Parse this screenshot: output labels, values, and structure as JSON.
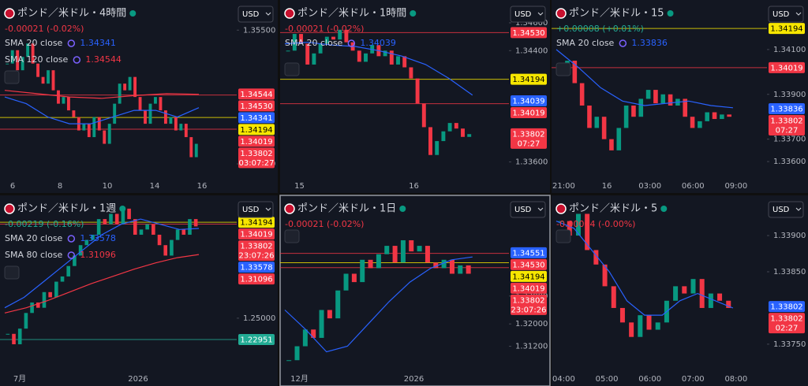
{
  "panels": [
    {
      "title": "ポンド／米ドル・4時間",
      "change": "-0.00021 (-0.02%)",
      "change_color": "#f23645",
      "currency": "USD",
      "indicators": [
        {
          "name": "SMA 20 close",
          "value": "1.34341",
          "color": "#2962ff"
        },
        {
          "name": "SMA 120 close",
          "value": "1.34544",
          "color": "#f23645"
        }
      ],
      "ylim": [
        1.333,
        1.3588
      ],
      "yticks": [
        {
          "value": 1.355,
          "label": "1.35500"
        },
        {
          "value": 1.335,
          "label": "1.33500"
        }
      ],
      "xticks": [
        "6",
        "8",
        "10",
        "14",
        "16"
      ],
      "price_labels": [
        {
          "value": 1.34544,
          "label": "1.34544",
          "color": "#f23645"
        },
        {
          "value": 1.3453,
          "label": "1.34530",
          "color": "#f23645",
          "line": true
        },
        {
          "value": 1.34341,
          "label": "1.34341",
          "color": "#2962ff"
        },
        {
          "value": 1.34194,
          "label": "1.34194",
          "color": "#f7e600",
          "line": true
        },
        {
          "value": 1.34019,
          "label": "1.34019",
          "color": "#f23645",
          "line": true
        },
        {
          "value": 1.33802,
          "label": "1.33802",
          "color": "#f23645",
          "timer": "03:07:27"
        }
      ],
      "closes": [
        1.35,
        1.352,
        1.349,
        1.351,
        1.353,
        1.35,
        1.348,
        1.347,
        1.349,
        1.346,
        1.344,
        1.345,
        1.343,
        1.342,
        1.34,
        1.341,
        1.339,
        1.342,
        1.34,
        1.338,
        1.341,
        1.344,
        1.347,
        1.346,
        1.348,
        1.345,
        1.343,
        1.341,
        1.344,
        1.345,
        1.343,
        1.341,
        1.342,
        1.34,
        1.341,
        1.339,
        1.336,
        1.338
      ],
      "sma": [
        {
          "color": "#2962ff",
          "values": [
            1.345,
            1.344,
            1.342,
            1.341,
            1.341,
            1.342,
            1.343,
            1.343,
            1.342,
            1.3434
          ]
        },
        {
          "color": "#f23645",
          "values": [
            1.346,
            1.3455,
            1.345,
            1.3448,
            1.3452,
            1.3455,
            1.3454
          ]
        }
      ]
    },
    {
      "title": "ポンド／米ドル・1時間",
      "change": "-0.00021 (-0.02%)",
      "change_color": "#f23645",
      "currency": "USD",
      "indicators": [
        {
          "name": "SMA 20 close",
          "value": "1.34039",
          "color": "#2962ff"
        }
      ],
      "ylim": [
        1.3349,
        1.3473
      ],
      "yticks": [
        {
          "value": 1.346,
          "label": "1.34600"
        },
        {
          "value": 1.344,
          "label": "1.34400"
        },
        {
          "value": 1.336,
          "label": "1.33600"
        }
      ],
      "xticks": [
        "15",
        "16"
      ],
      "price_labels": [
        {
          "value": 1.3453,
          "label": "1.34530",
          "color": "#f23645",
          "line": true
        },
        {
          "value": 1.34194,
          "label": "1.34194",
          "color": "#f7e600",
          "line": true
        },
        {
          "value": 1.34039,
          "label": "1.34039",
          "color": "#2962ff"
        },
        {
          "value": 1.34019,
          "label": "1.34019",
          "color": "#f23645",
          "line": true
        },
        {
          "value": 1.33802,
          "label": "1.33802",
          "color": "#f23645",
          "timer": "07:27"
        }
      ],
      "closes": [
        1.344,
        1.3452,
        1.3445,
        1.343,
        1.3438,
        1.3445,
        1.345,
        1.3448,
        1.3455,
        1.3446,
        1.344,
        1.3432,
        1.3438,
        1.3444,
        1.3436,
        1.344,
        1.343,
        1.3436,
        1.3428,
        1.342,
        1.3402,
        1.3385,
        1.3365,
        1.3375,
        1.3382,
        1.3388,
        1.3384,
        1.3378,
        1.338
      ],
      "sma": [
        {
          "color": "#2962ff",
          "values": [
            1.3445,
            1.3446,
            1.3444,
            1.3443,
            1.344,
            1.3436,
            1.343,
            1.342,
            1.3408
          ]
        }
      ]
    },
    {
      "title": "ポンド／米ドル・15",
      "change": "+0.00008 (+0.01%)",
      "change_color": "#22ab94",
      "currency": "USD",
      "indicators": [
        {
          "name": "SMA 20 close",
          "value": "1.33836",
          "color": "#2962ff"
        }
      ],
      "ylim": [
        1.3353,
        1.343
      ],
      "yticks": [
        {
          "value": 1.341,
          "label": "1.34100"
        },
        {
          "value": 1.339,
          "label": "1.33900"
        },
        {
          "value": 1.337,
          "label": "1.33700"
        },
        {
          "value": 1.336,
          "label": "1.33600"
        }
      ],
      "xticks": [
        "21:00",
        "16",
        "03:00",
        "06:00",
        "09:00"
      ],
      "price_labels": [
        {
          "value": 1.34194,
          "label": "1.34194",
          "color": "#f7e600",
          "line": true
        },
        {
          "value": 1.34019,
          "label": "1.34019",
          "color": "#f23645",
          "line": true
        },
        {
          "value": 1.33836,
          "label": "1.33836",
          "color": "#2962ff"
        },
        {
          "value": 1.33802,
          "label": "1.33802",
          "color": "#f23645",
          "timer": "07:27"
        }
      ],
      "closes": [
        1.34,
        1.3405,
        1.3395,
        1.3385,
        1.3375,
        1.338,
        1.337,
        1.3365,
        1.3375,
        1.3385,
        1.338,
        1.3388,
        1.3392,
        1.3386,
        1.339,
        1.3385,
        1.3388,
        1.338,
        1.3375,
        1.3378,
        1.3382,
        1.3379,
        1.3381,
        1.338
      ],
      "sma": [
        {
          "color": "#2962ff",
          "values": [
            1.341,
            1.3402,
            1.3393,
            1.3387,
            1.3385,
            1.3386,
            1.3387,
            1.3385,
            1.3384
          ]
        }
      ]
    },
    {
      "title": "ポンド／米ドル・1週",
      "change": "-0.00219 (-0.16%)",
      "change_color": "#22ab94",
      "currency": "USD",
      "indicators": [
        {
          "name": "SMA 20 close",
          "value": "1.33578",
          "color": "#2962ff"
        },
        {
          "name": "SMA 80 close",
          "value": "1.31096",
          "color": "#f23645"
        }
      ],
      "ylim": [
        1.2001,
        1.3632
      ],
      "yticks": [
        {
          "value": 1.25,
          "label": "1.25000"
        }
      ],
      "xticks": [
        "7月",
        "2026"
      ],
      "price_labels": [
        {
          "value": 1.34194,
          "label": "1.34194",
          "color": "#f7e600",
          "line": true
        },
        {
          "value": 1.34019,
          "label": "1.34019",
          "color": "#f23645",
          "line": true
        },
        {
          "value": 1.33802,
          "label": "1.33802",
          "color": "#f23645",
          "timer": "23:07:26"
        },
        {
          "value": 1.33578,
          "label": "1.33578",
          "color": "#2962ff"
        },
        {
          "value": 1.31096,
          "label": "1.31096",
          "color": "#f23645"
        },
        {
          "value": 1.22951,
          "label": "1.22951",
          "color": "#22ab94",
          "line": true
        }
      ],
      "closes": [
        1.235,
        1.225,
        1.24,
        1.255,
        1.265,
        1.26,
        1.275,
        1.27,
        1.285,
        1.29,
        1.3,
        1.31,
        1.32,
        1.325,
        1.33,
        1.345,
        1.34,
        1.35,
        1.34,
        1.355,
        1.345,
        1.33,
        1.335,
        1.34,
        1.33,
        1.32,
        1.31,
        1.325,
        1.335,
        1.33,
        1.345,
        1.338
      ],
      "sma": [
        {
          "color": "#2962ff",
          "values": [
            1.26,
            1.27,
            1.285,
            1.3,
            1.315,
            1.33,
            1.34,
            1.345,
            1.34,
            1.335,
            1.336
          ]
        },
        {
          "color": "#f23645",
          "values": [
            1.255,
            1.26,
            1.267,
            1.275,
            1.283,
            1.29,
            1.297,
            1.303,
            1.308,
            1.311
          ]
        }
      ]
    },
    {
      "title": "ポンド／米ドル・1日",
      "change": "-0.00021 (-0.02%)",
      "change_color": "#f23645",
      "currency": "USD",
      "selected": true,
      "indicators": [],
      "ylim": [
        1.3034,
        1.3644
      ],
      "yticks": [
        {
          "value": 1.33,
          "label": "1.33000"
        },
        {
          "value": 1.32,
          "label": "1.32000"
        },
        {
          "value": 1.312,
          "label": "1.31200"
        }
      ],
      "xticks": [
        "12月",
        "2026"
      ],
      "price_labels": [
        {
          "value": 1.34551,
          "label": "1.34551",
          "color": "#2962ff"
        },
        {
          "value": 1.3453,
          "label": "1.34530",
          "color": "#f23645",
          "line": true
        },
        {
          "value": 1.34194,
          "label": "1.34194",
          "color": "#f7e600",
          "line": true
        },
        {
          "value": 1.34019,
          "label": "1.34019",
          "color": "#f23645",
          "line": true
        },
        {
          "value": 1.33802,
          "label": "1.33802",
          "color": "#f23645",
          "timer": "23:07:26"
        }
      ],
      "closes": [
        1.307,
        1.312,
        1.318,
        1.315,
        1.325,
        1.322,
        1.332,
        1.338,
        1.335,
        1.343,
        1.34,
        1.345,
        1.348,
        1.342,
        1.35,
        1.346,
        1.348,
        1.342,
        1.34,
        1.343,
        1.338,
        1.341,
        1.338
      ],
      "sma": [
        {
          "color": "#2962ff",
          "values": [
            1.325,
            1.318,
            1.31,
            1.312,
            1.32,
            1.328,
            1.335,
            1.34,
            1.343,
            1.344
          ]
        }
      ]
    },
    {
      "title": "ポンド／米ドル・5",
      "change": "-0.00004 (-0.00%)",
      "change_color": "#f23645",
      "currency": "USD",
      "indicators": [],
      "ylim": [
        1.33714,
        1.33949
      ],
      "yticks": [
        {
          "value": 1.339,
          "label": "1.33900"
        },
        {
          "value": 1.3385,
          "label": "1.33850"
        },
        {
          "value": 1.3375,
          "label": "1.33750"
        }
      ],
      "xticks": [
        "04:00",
        "05:00",
        "06:00",
        "07:00",
        "08:00"
      ],
      "price_labels": [
        {
          "value": 1.33802,
          "label": "1.33802",
          "color": "#2962ff"
        },
        {
          "value": 1.33802,
          "label": "1.33802",
          "color": "#f23645",
          "timer": "02:27"
        }
      ],
      "closes": [
        1.3392,
        1.339,
        1.3393,
        1.3388,
        1.3386,
        1.3383,
        1.338,
        1.3378,
        1.3376,
        1.3379,
        1.3377,
        1.3378,
        1.3381,
        1.3383,
        1.3382,
        1.3384,
        1.338,
        1.3382,
        1.3381,
        1.338
      ],
      "sma": [
        {
          "color": "#2962ff",
          "values": [
            1.3392,
            1.3391,
            1.3388,
            1.3385,
            1.3381,
            1.3379,
            1.3379,
            1.3381,
            1.3382,
            1.3381,
            1.338
          ]
        }
      ]
    }
  ]
}
